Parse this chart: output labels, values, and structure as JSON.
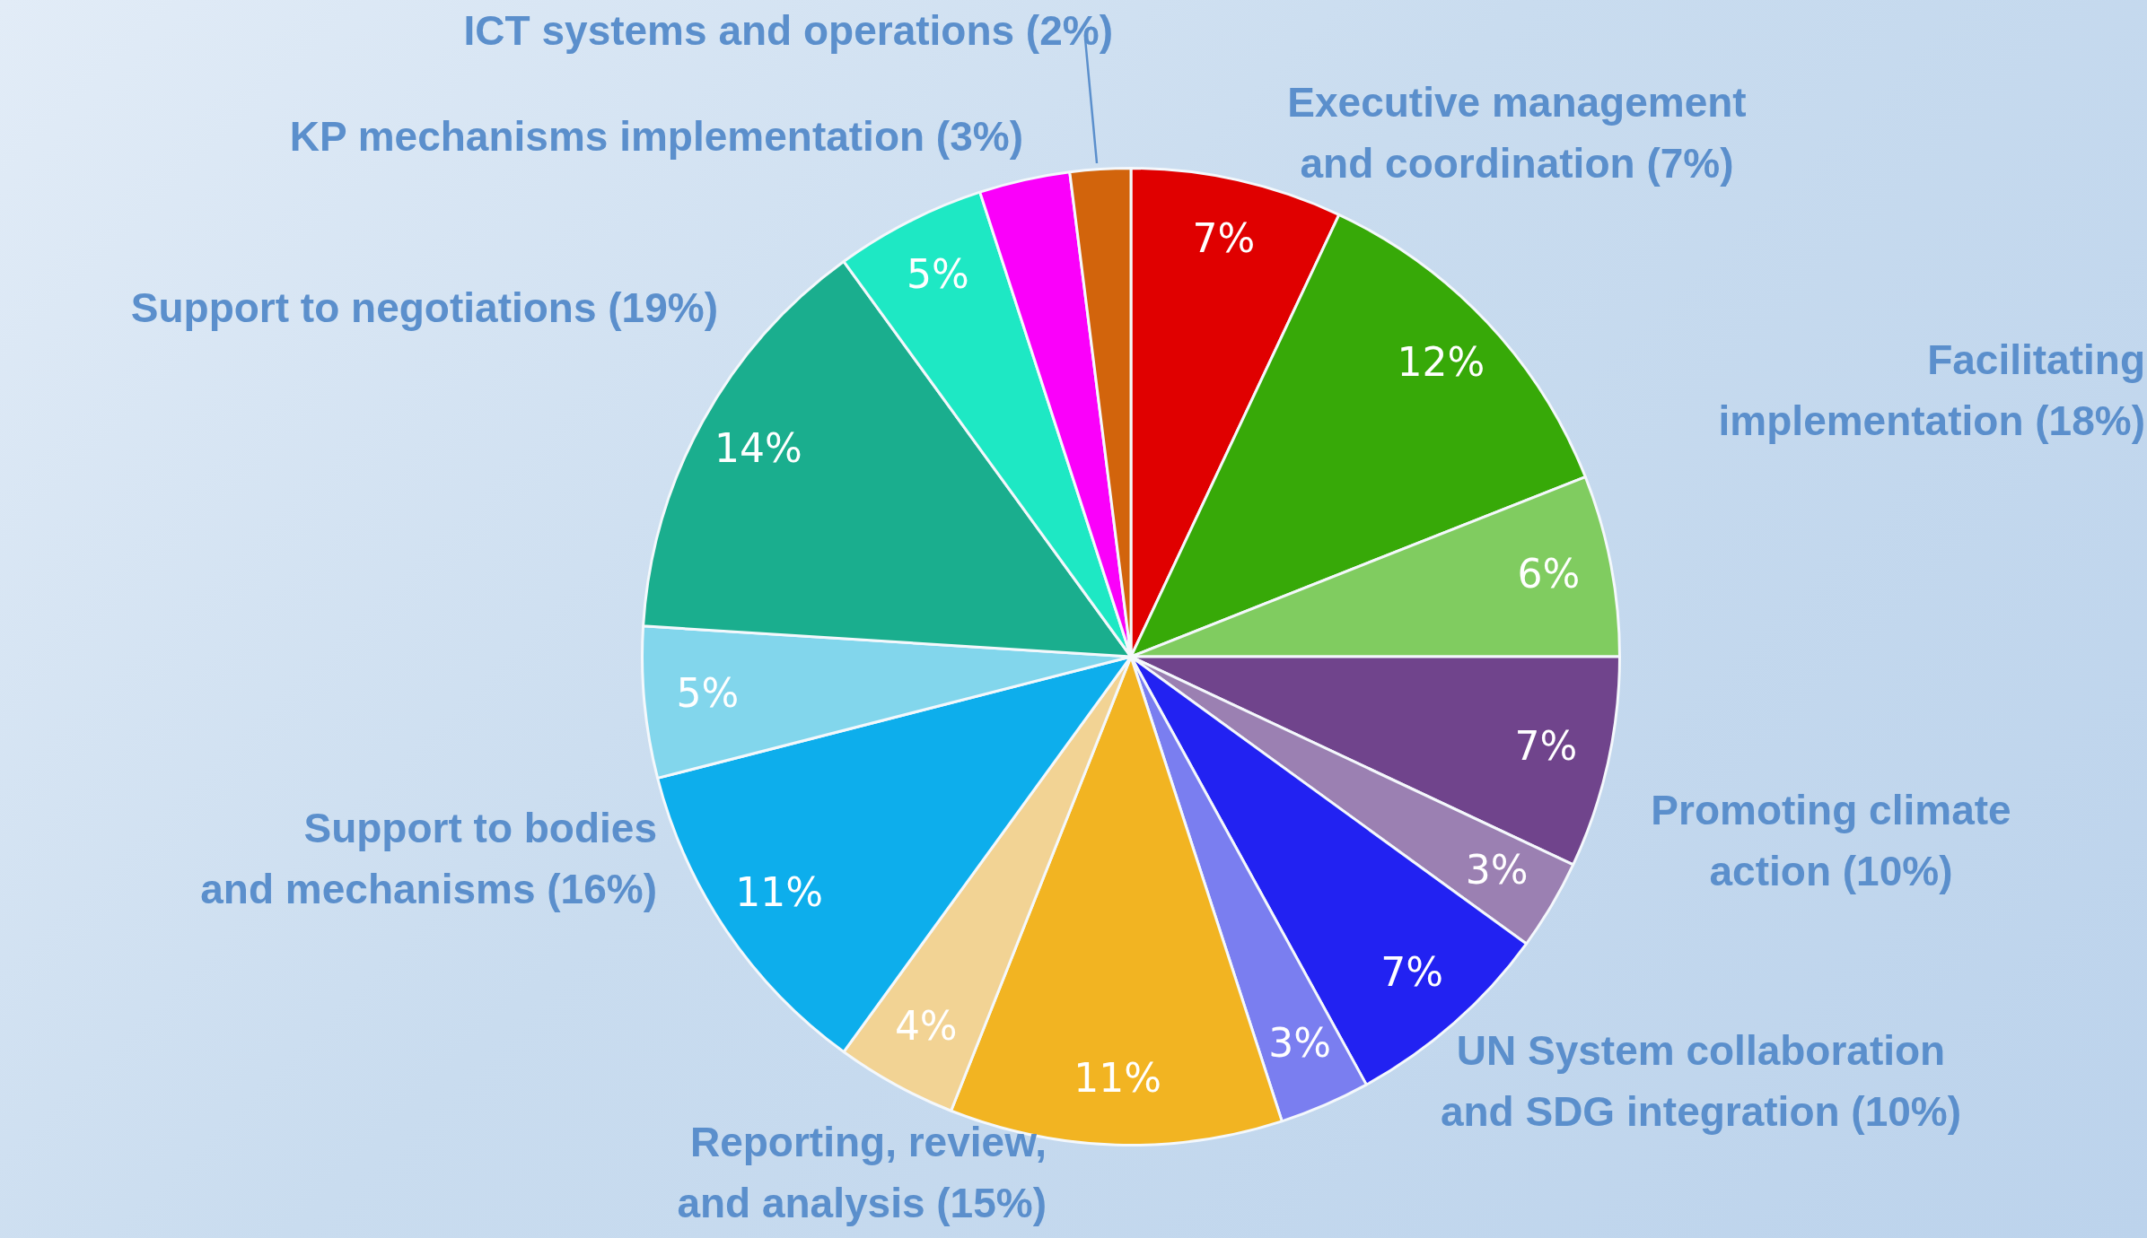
{
  "chart_data": {
    "type": "pie",
    "categories": [
      null,
      null,
      null,
      null,
      null,
      null,
      null,
      null,
      null,
      null,
      null,
      null,
      null,
      null,
      null
    ],
    "values": [
      7,
      12,
      6,
      7,
      3,
      7,
      3,
      11,
      4,
      11,
      5,
      14,
      5,
      3,
      2
    ],
    "value_labels": [
      "7%",
      "12%",
      "6%",
      "7%",
      "3%",
      "7%",
      "3%",
      "11%",
      "4%",
      "11%",
      "5%",
      "14%",
      "5%",
      null,
      null
    ],
    "colors": [
      "#e00000",
      "#37a908",
      "#80cc60",
      "#70448c",
      "#9b80b2",
      "#2222f2",
      "#7a7ef0",
      "#f2b422",
      "#f2d394",
      "#0daeec",
      "#82d6ec",
      "#1aae8e",
      "#1ee8c4",
      "#fa00fa",
      "#d2640c"
    ],
    "legend": false,
    "annotations": [
      "ICT systems and operations (2%)",
      "KP mechanisms implementation (3%)",
      "Executive management\nand coordination (7%)",
      "Facilitating\n implementation (18%)",
      "Support to negotiations (19%)",
      "Promoting climate\naction (10%)",
      "UN System collaboration\nand SDG integration (10%)",
      "Support to bodies\nand mechanisms (16%)",
      "Reporting, review,\nand analysis (15%)"
    ]
  }
}
